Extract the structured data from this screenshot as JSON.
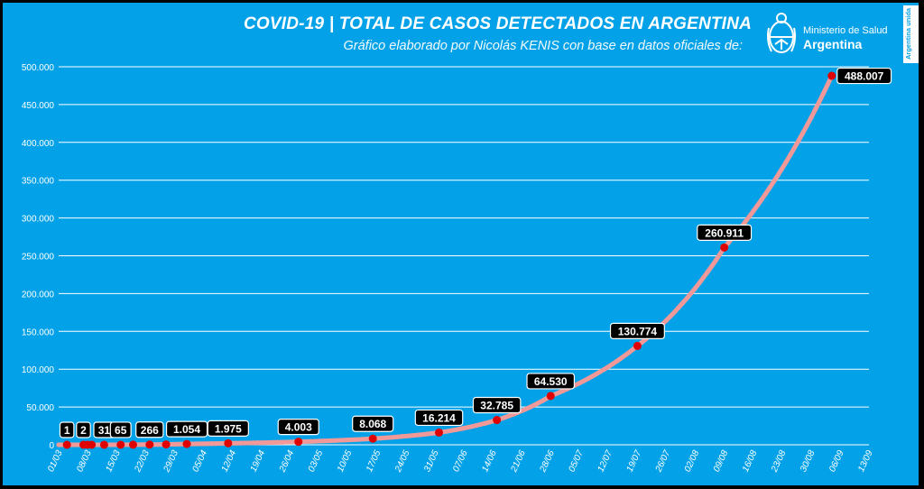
{
  "header": {
    "title": "COVID-19  |  TOTAL DE CASOS DETECTADOS EN ARGENTINA",
    "subtitle": "Gráfico elaborado por Nicolás KENIS con base en datos oficiales de:"
  },
  "logo": {
    "line1": "Ministerio de Salud",
    "line2": "Argentina",
    "side_badge": "Argentina unida"
  },
  "colors": {
    "background": "#03A2E8",
    "frame": "#000000",
    "line": "#F19999",
    "marker": "#E00000",
    "grid": "#FFFFFF",
    "label_bg": "#000000"
  },
  "chart_data": {
    "type": "line",
    "title": "COVID-19  |  TOTAL DE CASOS DETECTADOS EN ARGENTINA",
    "xlabel": "",
    "ylabel": "",
    "ylim": [
      0,
      500000
    ],
    "y_ticks": [
      0,
      50000,
      100000,
      150000,
      200000,
      250000,
      300000,
      350000,
      400000,
      450000,
      500000
    ],
    "y_tick_labels": [
      "0",
      "50.000",
      "100.000",
      "150.000",
      "200.000",
      "250.000",
      "300.000",
      "350.000",
      "400.000",
      "450.000",
      "500.000"
    ],
    "x_tick_labels": [
      "01/03",
      "08/03",
      "15/03",
      "22/03",
      "29/03",
      "05/04",
      "12/04",
      "19/04",
      "26/04",
      "03/05",
      "10/05",
      "17/05",
      "24/05",
      "31/05",
      "07/06",
      "14/06",
      "21/06",
      "28/06",
      "05/07",
      "12/07",
      "19/07",
      "26/07",
      "02/08",
      "09/08",
      "16/08",
      "23/08",
      "30/08",
      "06/09",
      "13/09"
    ],
    "x_ticks_day": [
      0,
      7,
      14,
      21,
      28,
      35,
      42,
      49,
      56,
      63,
      70,
      77,
      84,
      91,
      98,
      105,
      112,
      119,
      126,
      133,
      140,
      147,
      154,
      161,
      168,
      175,
      182,
      189,
      196
    ],
    "grid": true,
    "legend": "none",
    "series": [
      {
        "x_day": [
          2,
          6,
          7,
          8,
          11,
          15,
          18,
          22,
          26,
          31,
          41,
          58,
          76,
          92,
          106,
          119,
          140,
          161,
          187
        ],
        "y": [
          1,
          2,
          8,
          12,
          31,
          65,
          128,
          266,
          502,
          1054,
          1975,
          4003,
          8068,
          16214,
          32785,
          64530,
          130774,
          260911,
          488007
        ],
        "labels": [
          "1",
          "2",
          "",
          "",
          "31",
          "65",
          "",
          "266",
          "",
          "1.054",
          "1.975",
          "4.003",
          "8.068",
          "16.214",
          "32.785",
          "64.530",
          "130.774",
          "260.911",
          "488.007"
        ]
      }
    ]
  }
}
